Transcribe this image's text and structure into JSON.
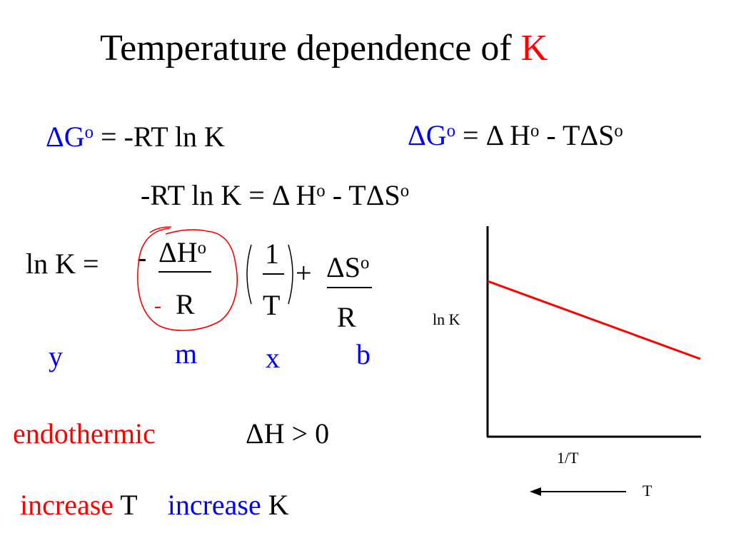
{
  "title": {
    "main": "Temperature dependence of ",
    "accent": "K"
  },
  "eq1": {
    "delta": "Δ",
    "g": "G",
    "sup": "o",
    "rest": " = -RT ln K"
  },
  "eq2": {
    "delta": "Δ",
    "g": "G",
    "sup1": "o",
    "mid": " = Δ H",
    "sup2": "o",
    "mid2": " - TΔS",
    "sup3": "o"
  },
  "eq3": {
    "a": "-RT ln K = Δ H",
    "sup1": "o",
    "b": " - TΔS",
    "sup2": "o"
  },
  "lnk_eq": {
    "lhs": "ln K =",
    "neg_sign": "-",
    "dh": "ΔH",
    "dh_sup": "o",
    "red_minus": "-",
    "r1": "R",
    "one": "1",
    "t": "T",
    "plus": "+",
    "ds": "ΔS",
    "ds_sup": "o",
    "r2": "R"
  },
  "line_parts": {
    "y": "y",
    "m": "m",
    "x": "x",
    "b": "b"
  },
  "endothermic": {
    "label": "endothermic",
    "cond": "ΔH > 0"
  },
  "increase": {
    "w1": "increase",
    "t": " T",
    "w2": "increase",
    "k": " K"
  },
  "graph": {
    "ylabel": "ln K",
    "xlabel": "1/T",
    "arrow_label": "T",
    "line_color": "#ff0000"
  },
  "colors": {
    "blue": "#0000ff",
    "red": "#ff0000",
    "black": "#000000"
  }
}
